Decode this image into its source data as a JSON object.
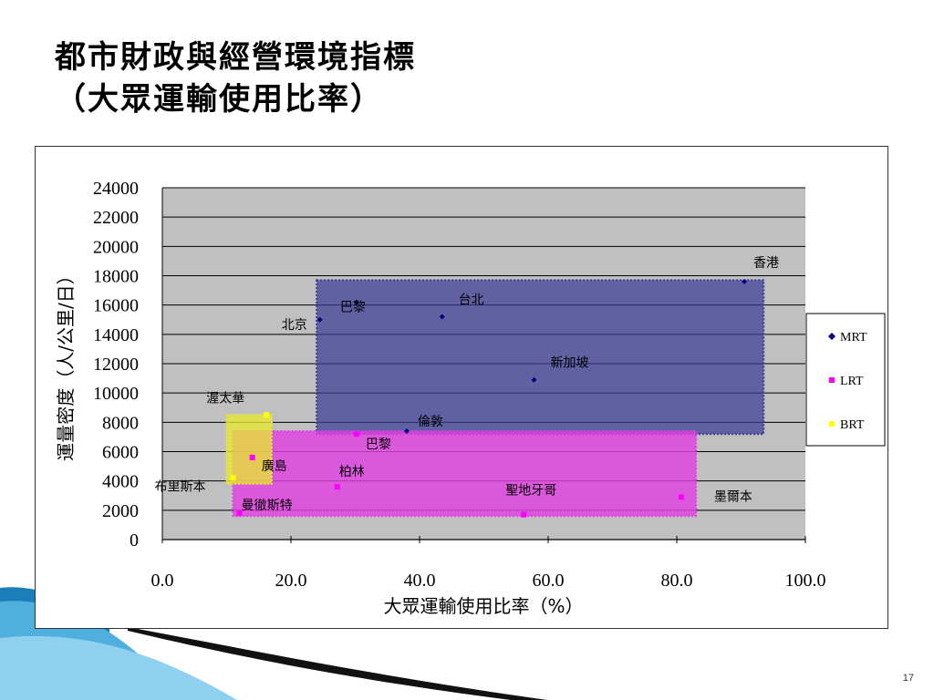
{
  "slide": {
    "title_line1": "都市財政與經營環境指標",
    "title_line2": "（大眾運輸使用比率）",
    "page_number": "17"
  },
  "chart_data": {
    "type": "scatter",
    "xlabel": "大眾運輸使用比率（%）",
    "ylabel": "運量密度（人/公里/日）",
    "xlim": [
      0,
      100
    ],
    "ylim": [
      0,
      24000
    ],
    "x_ticks": [
      "0.0",
      "20.0",
      "40.0",
      "60.0",
      "80.0",
      "100.0"
    ],
    "y_ticks": [
      "0",
      "2000",
      "4000",
      "6000",
      "8000",
      "10000",
      "12000",
      "14000",
      "16000",
      "18000",
      "20000",
      "22000",
      "24000"
    ],
    "grid": "horizontal",
    "legend_position": "right",
    "series": [
      {
        "name": "MRT",
        "color": "#000080",
        "points": [
          {
            "x": 24.5,
            "y": 15000,
            "label": "北京"
          },
          {
            "x": 30.2,
            "y": 16200,
            "label": "巴黎"
          },
          {
            "x": 43.5,
            "y": 15200,
            "label": "台北"
          },
          {
            "x": 57.8,
            "y": 10900,
            "label": "新加坡"
          },
          {
            "x": 90.5,
            "y": 17600,
            "label": "香港"
          },
          {
            "x": 38.0,
            "y": 7400,
            "label": "倫敦"
          }
        ]
      },
      {
        "name": "LRT",
        "color": "#ff00ff",
        "points": [
          {
            "x": 14.0,
            "y": 5600,
            "label": "廣島"
          },
          {
            "x": 30.2,
            "y": 7200,
            "label": "巴黎"
          },
          {
            "x": 27.2,
            "y": 3600,
            "label": "柏林"
          },
          {
            "x": 56.2,
            "y": 1700,
            "label": "聖地牙哥"
          },
          {
            "x": 80.7,
            "y": 2900,
            "label": "墨爾本"
          },
          {
            "x": 12.0,
            "y": 1800,
            "label": "曼徹斯特"
          }
        ]
      },
      {
        "name": "BRT",
        "color": "#ffff00",
        "points": [
          {
            "x": 16.2,
            "y": 8500,
            "label": "渥太華"
          },
          {
            "x": 11.0,
            "y": 4200,
            "label": "布里斯本"
          }
        ]
      }
    ],
    "regions": [
      {
        "series": "MRT",
        "x0": 24.0,
        "x1": 93.5,
        "y0": 7200,
        "y1": 17700,
        "color": "#3c3c96"
      },
      {
        "series": "LRT",
        "x0": 11.0,
        "x1": 83.0,
        "y0": 1600,
        "y1": 7400,
        "color": "#e040e0"
      },
      {
        "series": "BRT",
        "x0": 10.0,
        "x1": 17.0,
        "y0": 3800,
        "y1": 8500,
        "color": "#e8e830"
      }
    ]
  }
}
